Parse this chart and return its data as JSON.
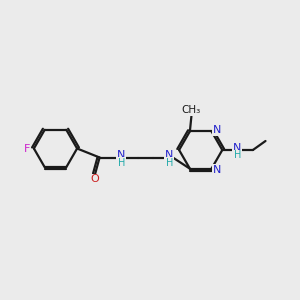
{
  "background_color": "#ebebeb",
  "bond_color": "#1a1a1a",
  "N_color": "#2222cc",
  "O_color": "#cc2222",
  "F_color": "#cc22cc",
  "H_color": "#22aaaa",
  "figsize": [
    3.0,
    3.0
  ],
  "dpi": 100,
  "xlim": [
    0,
    10
  ],
  "ylim": [
    0,
    10
  ]
}
